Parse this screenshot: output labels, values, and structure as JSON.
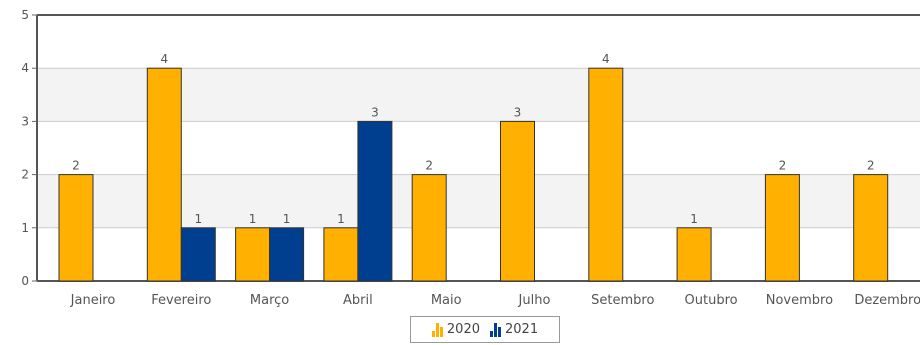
{
  "chart_data": {
    "type": "bar",
    "categories": [
      "Janeiro",
      "Fevereiro",
      "Março",
      "Abril",
      "Maio",
      "Julho",
      "Setembro",
      "Outubro",
      "Novembro",
      "Dezembro"
    ],
    "series": [
      {
        "name": "2020",
        "color": "#FFB000",
        "values": [
          2,
          4,
          1,
          1,
          2,
          3,
          4,
          1,
          2,
          2
        ]
      },
      {
        "name": "2021",
        "color": "#003F8F",
        "values": [
          null,
          1,
          1,
          3,
          null,
          null,
          null,
          null,
          null,
          null
        ]
      }
    ],
    "ylim": [
      0,
      5
    ],
    "yticks": [
      "0",
      "1",
      "2",
      "3",
      "4",
      "5"
    ],
    "grid": true,
    "band_color": "#F3F3F3",
    "data_labels": true,
    "legend_position": "bottom-center"
  }
}
